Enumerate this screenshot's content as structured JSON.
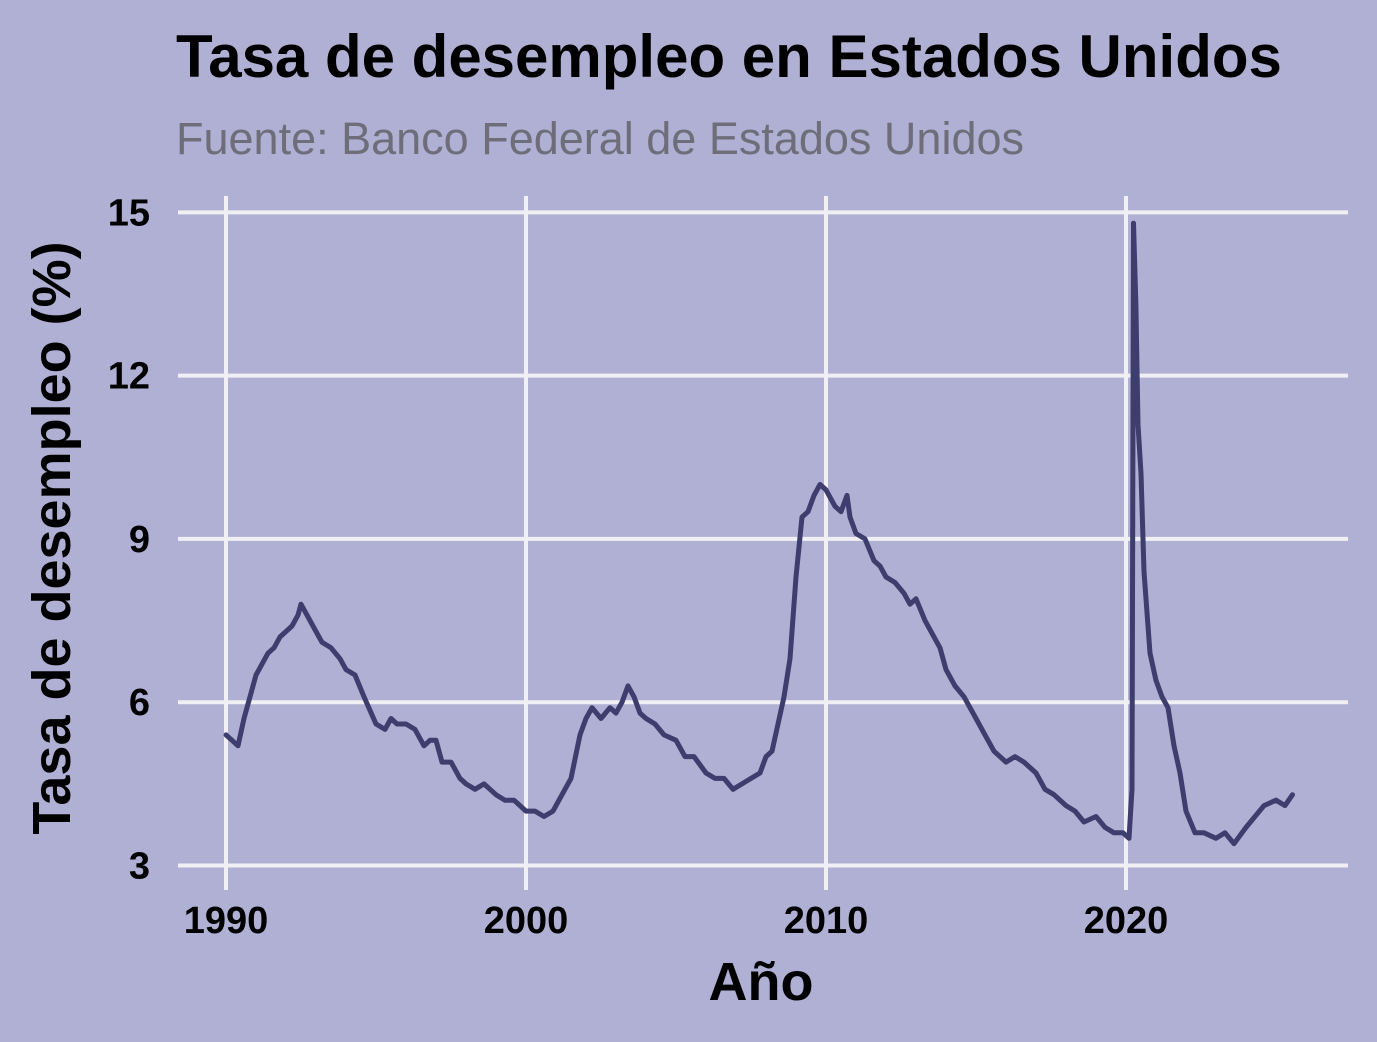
{
  "chart_data": {
    "type": "line",
    "title": "Tasa de desempleo en Estados Unidos",
    "subtitle": "Fuente: Banco Federal de Estados Unidos",
    "xlabel": "Año",
    "ylabel": "Tasa de desempleo (%)",
    "x_ticks": [
      1990,
      2000,
      2010,
      2020
    ],
    "y_ticks": [
      3,
      6,
      9,
      12,
      15
    ],
    "xlim": [
      1988.4,
      2027.4
    ],
    "ylim": [
      2.55,
      15.3
    ],
    "grid": true,
    "legend": "none",
    "colors": {
      "background": "#afb0d3",
      "line": "#3d3d6e",
      "grid": "#f0f0f4"
    },
    "series": [
      {
        "x": [
          1990.0,
          1990.2,
          1990.4,
          1990.6,
          1990.8,
          1991.0,
          1991.2,
          1991.4,
          1991.6,
          1991.8,
          1992.0,
          1992.2,
          1992.4,
          1992.5,
          1992.7,
          1993.0,
          1993.2,
          1993.5,
          1993.8,
          1994.0,
          1994.3,
          1994.6,
          1995.0,
          1995.3,
          1995.5,
          1995.7,
          1996.0,
          1996.3,
          1996.6,
          1996.8,
          1997.0,
          1997.2,
          1997.5,
          1997.8,
          1998.0,
          1998.3,
          1998.6,
          1999.0,
          1999.3,
          1999.6,
          2000.0,
          2000.3,
          2000.6,
          2000.9,
          2001.2,
          2001.5,
          2001.8,
          2002.0,
          2002.2,
          2002.5,
          2002.8,
          2003.0,
          2003.2,
          2003.4,
          2003.6,
          2003.8,
          2004.0,
          2004.3,
          2004.6,
          2005.0,
          2005.3,
          2005.6,
          2006.0,
          2006.3,
          2006.6,
          2006.9,
          2007.2,
          2007.5,
          2007.8,
          2008.0,
          2008.2,
          2008.4,
          2008.6,
          2008.8,
          2009.0,
          2009.2,
          2009.4,
          2009.6,
          2009.8,
          2010.0,
          2010.3,
          2010.5,
          2010.7,
          2010.8,
          2011.0,
          2011.3,
          2011.6,
          2011.8,
          2012.0,
          2012.3,
          2012.6,
          2012.8,
          2013.0,
          2013.3,
          2013.6,
          2013.8,
          2014.0,
          2014.3,
          2014.6,
          2015.0,
          2015.3,
          2015.6,
          2016.0,
          2016.3,
          2016.6,
          2017.0,
          2017.3,
          2017.6,
          2018.0,
          2018.3,
          2018.6,
          2019.0,
          2019.3,
          2019.6,
          2019.9,
          2020.1,
          2020.2,
          2020.25,
          2020.33,
          2020.4,
          2020.5,
          2020.6,
          2020.8,
          2021.0,
          2021.2,
          2021.4,
          2021.6,
          2021.8,
          2022.0,
          2022.3,
          2022.6,
          2023.0,
          2023.3,
          2023.6,
          2024.0,
          2024.3,
          2024.6,
          2025.0,
          2025.3,
          2025.55
        ],
        "values": [
          5.4,
          5.3,
          5.2,
          5.7,
          6.1,
          6.5,
          6.7,
          6.9,
          7.0,
          7.2,
          7.3,
          7.4,
          7.6,
          7.8,
          7.6,
          7.3,
          7.1,
          7.0,
          6.8,
          6.6,
          6.5,
          6.1,
          5.6,
          5.5,
          5.7,
          5.6,
          5.6,
          5.5,
          5.2,
          5.3,
          5.3,
          4.9,
          4.9,
          4.6,
          4.5,
          4.4,
          4.5,
          4.3,
          4.2,
          4.2,
          4.0,
          4.0,
          3.9,
          4.0,
          4.3,
          4.6,
          5.4,
          5.7,
          5.9,
          5.7,
          5.9,
          5.8,
          6.0,
          6.3,
          6.1,
          5.8,
          5.7,
          5.6,
          5.4,
          5.3,
          5.0,
          5.0,
          4.7,
          4.6,
          4.6,
          4.4,
          4.5,
          4.6,
          4.7,
          5.0,
          5.1,
          5.6,
          6.1,
          6.8,
          8.3,
          9.4,
          9.5,
          9.8,
          10.0,
          9.9,
          9.6,
          9.5,
          9.8,
          9.4,
          9.1,
          9.0,
          8.6,
          8.5,
          8.3,
          8.2,
          8.0,
          7.8,
          7.9,
          7.5,
          7.2,
          7.0,
          6.6,
          6.3,
          6.1,
          5.7,
          5.4,
          5.1,
          4.9,
          5.0,
          4.9,
          4.7,
          4.4,
          4.3,
          4.1,
          4.0,
          3.8,
          3.9,
          3.7,
          3.6,
          3.6,
          3.5,
          4.4,
          14.8,
          13.3,
          11.1,
          10.2,
          8.4,
          6.9,
          6.4,
          6.1,
          5.9,
          5.2,
          4.7,
          4.0,
          3.6,
          3.6,
          3.5,
          3.6,
          3.4,
          3.7,
          3.9,
          4.1,
          4.2,
          4.1,
          4.3
        ]
      }
    ]
  }
}
